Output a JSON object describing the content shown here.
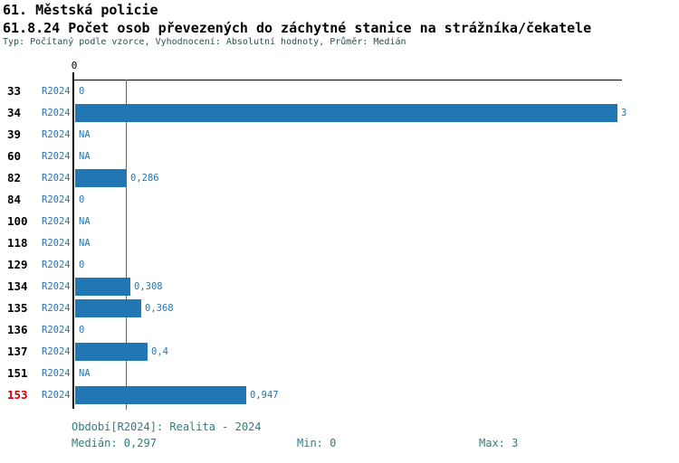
{
  "header": {
    "title_line1": "61. Městská policie",
    "title_line2": "61.8.24 Počet osob převezených do záchytné stanice na strážníka/čekatele",
    "subtitle": "Typ: Počítaný podle vzorce, Vyhodnocení: Absolutní hodnoty, Průměr: Medián"
  },
  "chart_data": {
    "type": "bar",
    "orientation": "horizontal",
    "title": "61.8.24 Počet osob převezených do záchytné stanice na strážníka/čekatele",
    "series_label": "R2024",
    "categories": [
      "33",
      "34",
      "39",
      "60",
      "82",
      "84",
      "100",
      "118",
      "129",
      "134",
      "135",
      "136",
      "137",
      "151",
      "153"
    ],
    "values": [
      0,
      3,
      null,
      null,
      0.286,
      0,
      null,
      null,
      0,
      0.308,
      0.368,
      0,
      0.4,
      null,
      0.947
    ],
    "value_labels": [
      "0",
      "3",
      "NA",
      "NA",
      "0,286",
      "0",
      "NA",
      "NA",
      "0",
      "0,308",
      "0,368",
      "0",
      "0,4",
      "NA",
      "0,947"
    ],
    "highlighted_category": "153",
    "xlim": [
      0,
      3
    ],
    "x_ticks": [
      {
        "value": 0,
        "label": "0"
      }
    ],
    "axis_position": "top",
    "grid": false,
    "legend": "none",
    "stats": {
      "median": 0.297,
      "min": 0,
      "max": 3
    },
    "median_line_value": 0.297
  },
  "footer": {
    "period": "Období[R2024]: Realita - 2024",
    "median": "Medián: 0,297",
    "min": "Min: 0",
    "max": "Max: 3"
  },
  "colors": {
    "bar": "#2176b4",
    "blue_text": "#1f77b4",
    "highlight_text": "#cc0000",
    "subtitle_text": "#2f4f4f",
    "footer_text": "#2e7d7d",
    "axis": "#000000",
    "median_line": "#2176b4"
  }
}
